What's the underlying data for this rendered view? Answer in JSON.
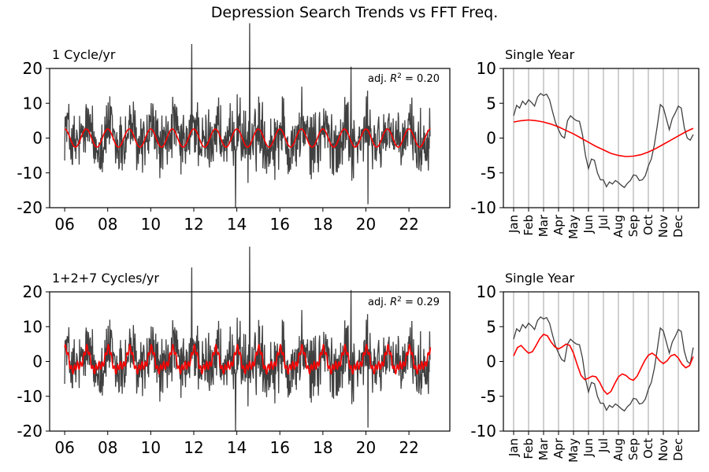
{
  "suptitle": "Depression Search Trends vs FFT Freq.",
  "chart_data": [
    {
      "type": "line",
      "title": "1 Cycle/yr",
      "annotation_prefix": "adj. ",
      "annotation_r2": "R",
      "annotation_value": " = 0.20",
      "x_tick_labels": [
        "06",
        "08",
        "10",
        "12",
        "14",
        "16",
        "18",
        "20",
        "22"
      ],
      "x_ticks_years": [
        2006,
        2008,
        2010,
        2012,
        2014,
        2016,
        2018,
        2020,
        2022
      ],
      "xlim": [
        2005.3,
        2023.9
      ],
      "ylim": [
        -20,
        20
      ],
      "y_ticks": [
        -20,
        -10,
        0,
        10,
        20
      ],
      "grid": false,
      "series": [
        {
          "role": "observed",
          "color": "#404040",
          "spikes": [
            {
              "x": 2011.9,
              "y": 27
            },
            {
              "x": 2014.6,
              "y": 33
            },
            {
              "x": 2019.3,
              "y": 20.5
            },
            {
              "x": 2013.95,
              "y": -20
            },
            {
              "x": 2020.1,
              "y": -19
            }
          ],
          "x_range": [
            2006.0,
            2023.0
          ],
          "y_range": [
            -17.5,
            15
          ]
        },
        {
          "role": "fit",
          "color": "#ff0000",
          "cycles_per_year": [
            1
          ],
          "amplitudes": [
            2.6
          ],
          "phases": [
            0.0
          ],
          "x_range": [
            2006.0,
            2023.0
          ]
        }
      ]
    },
    {
      "type": "line",
      "title": "Single Year",
      "x_tick_labels": [
        "Jan",
        "Feb",
        "Mar",
        "Apr",
        "May",
        "Jun",
        "Jul",
        "Aug",
        "Sep",
        "Oct",
        "Nov",
        "Dec"
      ],
      "ylim": [
        -10,
        10
      ],
      "y_ticks": [
        -10,
        -5,
        0,
        5,
        10
      ],
      "grid": true,
      "series": [
        {
          "role": "observed",
          "color": "#404040",
          "x": [
            0,
            0.2,
            0.4,
            0.6,
            0.8,
            1.0,
            1.2,
            1.4,
            1.6,
            1.8,
            2.0,
            2.2,
            2.4,
            2.6,
            2.8,
            3.0,
            3.2,
            3.4,
            3.6,
            3.8,
            4.0,
            4.2,
            4.4,
            4.6,
            4.8,
            5.0,
            5.2,
            5.4,
            5.6,
            5.8,
            6.0,
            6.2,
            6.4,
            6.6,
            6.8,
            7.0,
            7.2,
            7.4,
            7.6,
            7.8,
            8.0,
            8.2,
            8.4,
            8.6,
            8.8,
            9.0,
            9.2,
            9.4,
            9.6,
            9.8,
            10.0,
            10.2,
            10.4,
            10.6,
            10.8,
            11.0,
            11.2,
            11.4,
            11.6,
            11.8,
            12.0
          ],
          "y": [
            3.2,
            4.7,
            4.3,
            5.3,
            4.8,
            5.5,
            5.1,
            4.6,
            5.9,
            6.4,
            6.1,
            6.3,
            5.5,
            3.8,
            2.2,
            1.2,
            0.3,
            0.0,
            2.5,
            3.2,
            2.8,
            2.5,
            2.4,
            0.5,
            -2.5,
            -4.4,
            -3.0,
            -3.2,
            -5.0,
            -6.0,
            -6.0,
            -7.0,
            -6.3,
            -6.6,
            -6.1,
            -6.4,
            -6.8,
            -7.1,
            -6.5,
            -6.1,
            -5.3,
            -5.4,
            -6.1,
            -6.0,
            -5.4,
            -4.0,
            -3.0,
            -1.0,
            1.8,
            4.8,
            4.4,
            2.8,
            1.2,
            2.8,
            3.6,
            4.6,
            4.3,
            1.5,
            0.0,
            -0.3,
            0.5
          ]
        },
        {
          "role": "fit",
          "color": "#ff0000",
          "x": [
            0,
            0.5,
            1,
            1.5,
            2,
            2.5,
            3,
            3.5,
            4,
            4.5,
            5,
            5.5,
            6,
            6.5,
            7,
            7.5,
            8,
            8.5,
            9,
            9.5,
            10,
            10.5,
            11,
            11.5,
            12
          ],
          "y": [
            2.3,
            2.5,
            2.6,
            2.5,
            2.3,
            2.0,
            1.6,
            1.1,
            0.6,
            0.0,
            -0.6,
            -1.2,
            -1.7,
            -2.2,
            -2.5,
            -2.65,
            -2.6,
            -2.4,
            -2.0,
            -1.5,
            -0.9,
            -0.3,
            0.3,
            0.9,
            1.4
          ]
        }
      ]
    },
    {
      "type": "line",
      "title": "1+2+7 Cycles/yr",
      "annotation_prefix": "adj. ",
      "annotation_r2": "R",
      "annotation_value": " = 0.29",
      "x_tick_labels": [
        "06",
        "08",
        "10",
        "12",
        "14",
        "16",
        "18",
        "20",
        "22"
      ],
      "x_ticks_years": [
        2006,
        2008,
        2010,
        2012,
        2014,
        2016,
        2018,
        2020,
        2022
      ],
      "xlim": [
        2005.3,
        2023.9
      ],
      "ylim": [
        -20,
        20
      ],
      "y_ticks": [
        -20,
        -10,
        0,
        10,
        20
      ],
      "grid": false,
      "series": [
        {
          "role": "observed",
          "color": "#404040",
          "spikes": [
            {
              "x": 2011.9,
              "y": 27
            },
            {
              "x": 2014.6,
              "y": 33
            },
            {
              "x": 2019.3,
              "y": 20.5
            },
            {
              "x": 2013.95,
              "y": -20
            },
            {
              "x": 2020.1,
              "y": -19
            }
          ],
          "x_range": [
            2006.0,
            2023.0
          ],
          "y_range": [
            -17.5,
            15
          ]
        },
        {
          "role": "fit",
          "color": "#ff0000",
          "cycles_per_year": [
            1,
            2,
            7
          ],
          "amplitudes": [
            2.6,
            1.3,
            1.0
          ],
          "phases": [
            0.0,
            0.6,
            1.2
          ],
          "x_range": [
            2006.0,
            2023.0
          ]
        }
      ]
    },
    {
      "type": "line",
      "title": "Single Year",
      "x_tick_labels": [
        "Jan",
        "Feb",
        "Mar",
        "Apr",
        "May",
        "Jun",
        "Jul",
        "Aug",
        "Sep",
        "Oct",
        "Nov",
        "Dec"
      ],
      "ylim": [
        -10,
        10
      ],
      "y_ticks": [
        -10,
        -5,
        0,
        5,
        10
      ],
      "grid": true,
      "series": [
        {
          "role": "observed",
          "color": "#404040",
          "x": [
            0,
            0.2,
            0.4,
            0.6,
            0.8,
            1.0,
            1.2,
            1.4,
            1.6,
            1.8,
            2.0,
            2.2,
            2.4,
            2.6,
            2.8,
            3.0,
            3.2,
            3.4,
            3.6,
            3.8,
            4.0,
            4.2,
            4.4,
            4.6,
            4.8,
            5.0,
            5.2,
            5.4,
            5.6,
            5.8,
            6.0,
            6.2,
            6.4,
            6.6,
            6.8,
            7.0,
            7.2,
            7.4,
            7.6,
            7.8,
            8.0,
            8.2,
            8.4,
            8.6,
            8.8,
            9.0,
            9.2,
            9.4,
            9.6,
            9.8,
            10.0,
            10.2,
            10.4,
            10.6,
            10.8,
            11.0,
            11.2,
            11.4,
            11.6,
            11.8,
            12.0
          ],
          "y": [
            3.2,
            4.7,
            4.3,
            5.3,
            4.8,
            5.5,
            5.1,
            4.6,
            5.9,
            6.4,
            6.1,
            6.3,
            5.5,
            3.8,
            2.2,
            1.2,
            0.3,
            0.0,
            2.5,
            3.2,
            2.8,
            2.5,
            2.4,
            0.5,
            -2.5,
            -4.4,
            -3.0,
            -3.2,
            -5.0,
            -6.0,
            -6.0,
            -7.0,
            -6.3,
            -6.6,
            -6.1,
            -6.4,
            -6.8,
            -7.1,
            -6.5,
            -6.1,
            -5.3,
            -5.4,
            -6.1,
            -6.0,
            -5.4,
            -4.0,
            -3.0,
            -1.0,
            1.8,
            4.8,
            4.4,
            2.8,
            1.2,
            2.8,
            3.6,
            4.6,
            4.3,
            1.5,
            0.0,
            -0.3,
            2.0
          ]
        },
        {
          "role": "fit",
          "color": "#ff0000",
          "x": [
            0,
            0.25,
            0.5,
            0.75,
            1.0,
            1.25,
            1.5,
            1.75,
            2.0,
            2.25,
            2.5,
            2.75,
            3.0,
            3.25,
            3.5,
            3.75,
            4.0,
            4.25,
            4.5,
            4.75,
            5.0,
            5.25,
            5.5,
            5.75,
            6.0,
            6.25,
            6.5,
            6.75,
            7.0,
            7.25,
            7.5,
            7.75,
            8.0,
            8.25,
            8.5,
            8.75,
            9.0,
            9.25,
            9.5,
            9.75,
            10.0,
            10.25,
            10.5,
            10.75,
            11.0,
            11.25,
            11.5,
            11.75,
            12.0
          ],
          "y": [
            0.8,
            2.0,
            2.3,
            1.7,
            1.2,
            1.4,
            2.3,
            3.3,
            3.9,
            3.7,
            2.8,
            2.1,
            1.8,
            2.1,
            2.5,
            2.3,
            1.2,
            -0.5,
            -2.0,
            -2.6,
            -2.4,
            -2.1,
            -2.2,
            -3.0,
            -4.1,
            -4.7,
            -4.3,
            -3.2,
            -2.2,
            -1.8,
            -2.0,
            -2.5,
            -2.7,
            -2.1,
            -1.0,
            0.1,
            0.9,
            1.2,
            0.8,
            0.1,
            -0.3,
            0.1,
            0.8,
            1.0,
            0.5,
            -0.4,
            -0.9,
            -0.6,
            0.7
          ]
        }
      ]
    }
  ]
}
